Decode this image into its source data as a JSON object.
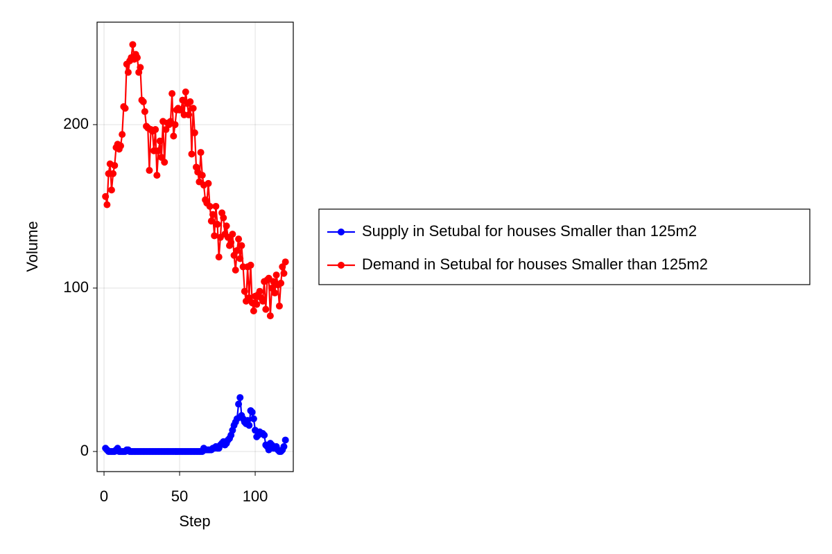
{
  "chart_data": {
    "type": "line",
    "xlabel": "Step",
    "ylabel": "Volume",
    "x": [
      1,
      2,
      3,
      4,
      5,
      6,
      7,
      8,
      9,
      10,
      11,
      12,
      13,
      14,
      15,
      16,
      17,
      18,
      19,
      20,
      21,
      22,
      23,
      24,
      25,
      26,
      27,
      28,
      29,
      30,
      31,
      32,
      33,
      34,
      35,
      36,
      37,
      38,
      39,
      40,
      41,
      42,
      43,
      44,
      45,
      46,
      47,
      48,
      49,
      50,
      51,
      52,
      53,
      54,
      55,
      56,
      57,
      58,
      59,
      60,
      61,
      62,
      63,
      64,
      65,
      66,
      67,
      68,
      69,
      70,
      71,
      72,
      73,
      74,
      75,
      76,
      77,
      78,
      79,
      80,
      81,
      82,
      83,
      84,
      85,
      86,
      87,
      88,
      89,
      90,
      91,
      92,
      93,
      94,
      95,
      96,
      97,
      98,
      99,
      100,
      101,
      102,
      103,
      104,
      105,
      106,
      107,
      108,
      109,
      110,
      111,
      112,
      113,
      114,
      115,
      116,
      117,
      118,
      119,
      120
    ],
    "series": [
      {
        "name": "Supply in Setubal for houses Smaller than 125m2",
        "color": "#0000ff",
        "values": [
          2,
          1,
          0,
          0,
          0,
          0,
          0,
          1,
          2,
          0,
          0,
          0,
          0,
          0,
          1,
          1,
          0,
          0,
          0,
          0,
          0,
          0,
          0,
          0,
          0,
          0,
          0,
          0,
          0,
          0,
          0,
          0,
          0,
          0,
          0,
          0,
          0,
          0,
          0,
          0,
          0,
          0,
          0,
          0,
          0,
          0,
          0,
          0,
          0,
          0,
          0,
          0,
          0,
          0,
          0,
          0,
          0,
          0,
          0,
          0,
          0,
          0,
          0,
          0,
          0,
          2,
          1,
          1,
          1,
          1,
          1,
          2,
          2,
          3,
          2,
          2,
          4,
          5,
          6,
          4,
          5,
          7,
          8,
          10,
          13,
          16,
          18,
          20,
          29,
          33,
          22,
          20,
          18,
          17,
          19,
          16,
          25,
          24,
          20,
          13,
          9,
          10,
          12,
          11,
          11,
          10,
          4,
          3,
          1,
          5,
          4,
          2,
          2,
          3,
          1,
          0,
          0,
          1,
          3,
          7
        ]
      },
      {
        "name": "Demand in Setubal for houses Smaller than 125m2",
        "color": "#ff0000",
        "values": [
          156,
          151,
          170,
          176,
          160,
          170,
          175,
          186,
          188,
          185,
          187,
          194,
          211,
          210,
          237,
          232,
          239,
          241,
          249,
          240,
          243,
          241,
          232,
          235,
          215,
          214,
          208,
          199,
          198,
          172,
          197,
          196,
          184,
          197,
          169,
          184,
          190,
          180,
          202,
          177,
          197,
          201,
          200,
          202,
          219,
          193,
          200,
          209,
          210,
          209,
          209,
          215,
          206,
          220,
          213,
          206,
          214,
          182,
          210,
          195,
          174,
          171,
          165,
          183,
          169,
          163,
          154,
          152,
          164,
          150,
          141,
          145,
          132,
          150,
          139,
          119,
          131,
          146,
          143,
          133,
          138,
          131,
          126,
          128,
          133,
          120,
          111,
          123,
          130,
          118,
          126,
          113,
          98,
          92,
          113,
          94,
          114,
          91,
          86,
          95,
          90,
          96,
          98,
          94,
          92,
          104,
          87,
          105,
          106,
          83,
          100,
          104,
          97,
          108,
          102,
          89,
          103,
          113,
          109,
          116
        ]
      }
    ],
    "xlim": [
      -4.6,
      125.2
    ],
    "xticks": [
      0,
      50,
      100
    ],
    "ylim": [
      -12.3,
      262.7
    ],
    "yticks": [
      0,
      100,
      200
    ],
    "grid": true,
    "legend": "right"
  }
}
